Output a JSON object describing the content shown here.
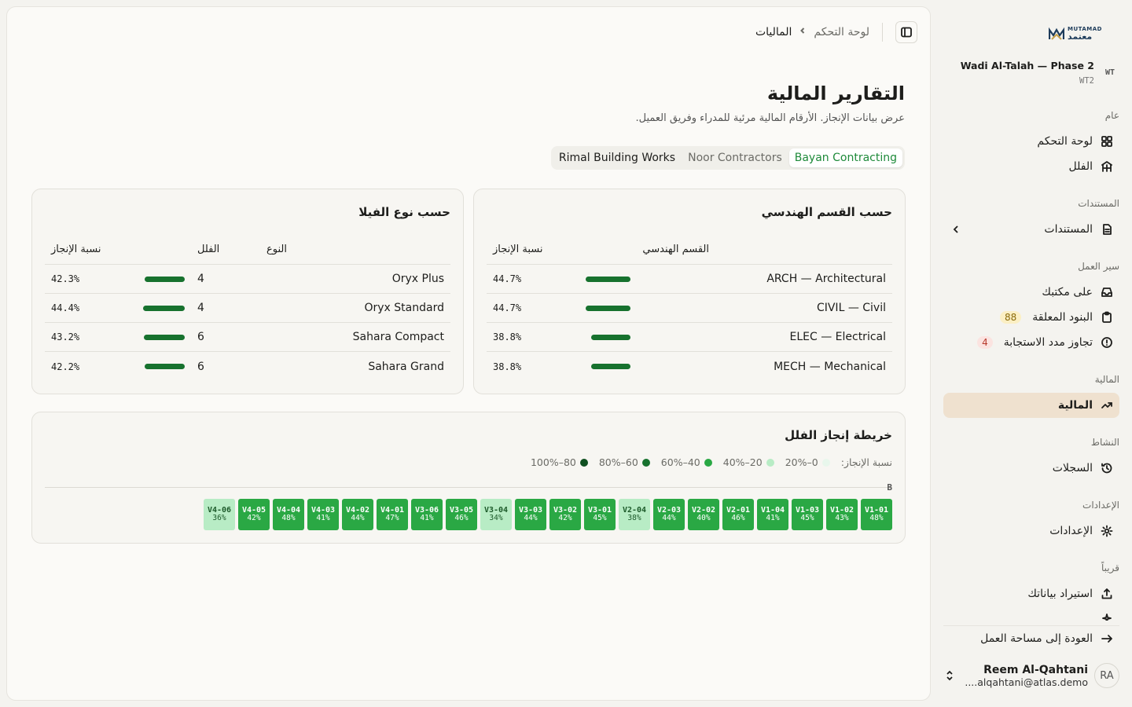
{
  "brand": {
    "name_en": "MUTAMAD",
    "name_ar": "معتمد",
    "color": "#1d3b5a"
  },
  "project": {
    "badge": "WT",
    "name": "Wadi Al-Talah — Phase 2",
    "code": "WT2"
  },
  "sidebar": {
    "sections": [
      {
        "title": "عام"
      },
      {
        "title": "المستندات"
      },
      {
        "title": "سير العمل"
      },
      {
        "title": "المالية"
      },
      {
        "title": "النشاط"
      },
      {
        "title": "الإعدادات"
      },
      {
        "title": "قريباً"
      }
    ],
    "items": {
      "dashboard": "لوحة التحكم",
      "villas": "الفلل",
      "documents": "المستندات",
      "on_desk": "على مكتبك",
      "open_items": "البنود المعلقة",
      "open_items_count": "88",
      "overdue": "تجاوز مدد الاستجابة",
      "overdue_count": "4",
      "finance": "المالية",
      "logs": "السجلات",
      "settings": "الإعدادات",
      "import": "استيراد بياناتك",
      "partial": "ـ ـ ـ ـ"
    },
    "back": "العودة إلى مساحة العمل"
  },
  "user": {
    "initials": "RA",
    "name": "Reem Al-Qahtani",
    "email": "....alqahtani@atlas.demo"
  },
  "breadcrumb": {
    "root": "لوحة التحكم",
    "current": "الماليات"
  },
  "page": {
    "title": "التقارير المالية",
    "subtitle": "عرض بيانات الإنجاز. الأرقام المالية مرئية للمدراء وفريق العميل."
  },
  "tabs": [
    "Bayan Contracting",
    "Noor Contractors",
    "Rimal Building Works"
  ],
  "discipline": {
    "title": "حسب القسم الهندسي",
    "col_name": "القسم الهندسي",
    "col_pct": "نسبة الإنجاز",
    "rows": [
      {
        "name": "ARCH — Architectural",
        "pct": "44.7%",
        "value": 44.7
      },
      {
        "name": "CIVIL — Civil",
        "pct": "44.7%",
        "value": 44.7
      },
      {
        "name": "ELEC — Electrical",
        "pct": "38.8%",
        "value": 38.8
      },
      {
        "name": "MECH — Mechanical",
        "pct": "38.8%",
        "value": 38.8
      }
    ]
  },
  "villa_type": {
    "title": "حسب نوع الفيلا",
    "col_type": "النوع",
    "col_villas": "الفلل",
    "col_pct": "نسبة الإنجاز",
    "rows": [
      {
        "type": "Oryx Plus",
        "villas": "4",
        "pct": "42.3%",
        "value": 42.3
      },
      {
        "type": "Oryx Standard",
        "villas": "4",
        "pct": "44.4%",
        "value": 44.4
      },
      {
        "type": "Sahara Compact",
        "villas": "6",
        "pct": "43.2%",
        "value": 43.2
      },
      {
        "type": "Sahara Grand",
        "villas": "6",
        "pct": "42.2%",
        "value": 42.2
      }
    ]
  },
  "heatmap": {
    "title": "خريطة إنجاز الفلل",
    "legend_label": "نسبة الإنجاز:",
    "legend": [
      {
        "label": "0–20%",
        "color": "#e8f7ec"
      },
      {
        "label": "20–40%",
        "color": "#b8ecc5"
      },
      {
        "label": "40–60%",
        "color": "#2aa844"
      },
      {
        "label": "60–80%",
        "color": "#17722e"
      },
      {
        "label": "80–100%",
        "color": "#0f4f20"
      }
    ],
    "group": "B",
    "cells": [
      {
        "id": "V1-01",
        "pct": "48%",
        "value": 48
      },
      {
        "id": "V1-02",
        "pct": "43%",
        "value": 43
      },
      {
        "id": "V1-03",
        "pct": "45%",
        "value": 45
      },
      {
        "id": "V1-04",
        "pct": "41%",
        "value": 41
      },
      {
        "id": "V2-01",
        "pct": "46%",
        "value": 46
      },
      {
        "id": "V2-02",
        "pct": "40%",
        "value": 40
      },
      {
        "id": "V2-03",
        "pct": "44%",
        "value": 44
      },
      {
        "id": "V2-04",
        "pct": "38%",
        "value": 38
      },
      {
        "id": "V3-01",
        "pct": "45%",
        "value": 45
      },
      {
        "id": "V3-02",
        "pct": "42%",
        "value": 42
      },
      {
        "id": "V3-03",
        "pct": "44%",
        "value": 44
      },
      {
        "id": "V3-04",
        "pct": "34%",
        "value": 34
      },
      {
        "id": "V3-05",
        "pct": "46%",
        "value": 46
      },
      {
        "id": "V3-06",
        "pct": "41%",
        "value": 41
      },
      {
        "id": "V4-01",
        "pct": "47%",
        "value": 47
      },
      {
        "id": "V4-02",
        "pct": "44%",
        "value": 44
      },
      {
        "id": "V4-03",
        "pct": "41%",
        "value": 41
      },
      {
        "id": "V4-04",
        "pct": "48%",
        "value": 48
      },
      {
        "id": "V4-05",
        "pct": "42%",
        "value": 42
      },
      {
        "id": "V4-06",
        "pct": "36%",
        "value": 36
      }
    ]
  },
  "colors": {
    "accent_green": "#17722e",
    "active_nav": "#efe1cf",
    "tab_active_text": "#1e8a3a"
  }
}
